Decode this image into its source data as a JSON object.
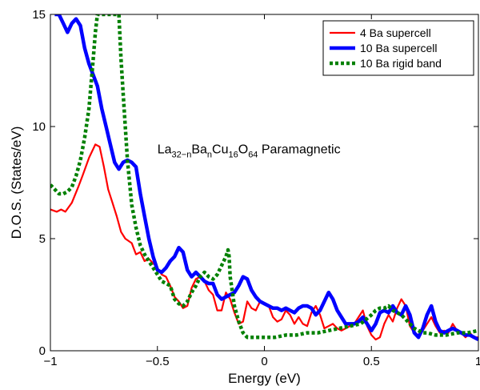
{
  "chart_data": {
    "type": "line",
    "title": "",
    "xlabel": "Energy (eV)",
    "ylabel": "D.O.S. (States/eV)",
    "xlim": [
      -1,
      1
    ],
    "ylim": [
      0,
      15
    ],
    "xticks": [
      -1,
      -0.5,
      0,
      0.5,
      1
    ],
    "xtick_labels": [
      "−1",
      "−0.5",
      "0",
      "0.5",
      "1"
    ],
    "yticks": [
      0,
      5,
      10,
      15
    ],
    "ytick_labels": [
      "0",
      "5",
      "10",
      "15"
    ],
    "grid": false,
    "legend_position": "top-right",
    "annotation": {
      "parts": [
        {
          "text": "La",
          "sub": false
        },
        {
          "text": "32−n",
          "sub": true
        },
        {
          "text": "Ba",
          "sub": false
        },
        {
          "text": "n",
          "sub": true
        },
        {
          "text": "Cu",
          "sub": false
        },
        {
          "text": "16",
          "sub": true
        },
        {
          "text": "O",
          "sub": false
        },
        {
          "text": "64",
          "sub": true
        },
        {
          "text": " Paramagnetic",
          "sub": false
        }
      ],
      "x": -0.5,
      "y": 8.8
    },
    "series": [
      {
        "name": "4 Ba supercell",
        "color": "#ff0000",
        "style": "solid",
        "x": [
          -1.0,
          -0.97,
          -0.95,
          -0.93,
          -0.9,
          -0.87,
          -0.85,
          -0.82,
          -0.79,
          -0.77,
          -0.75,
          -0.73,
          -0.71,
          -0.69,
          -0.67,
          -0.65,
          -0.62,
          -0.6,
          -0.58,
          -0.56,
          -0.54,
          -0.52,
          -0.5,
          -0.48,
          -0.46,
          -0.44,
          -0.42,
          -0.4,
          -0.38,
          -0.36,
          -0.34,
          -0.32,
          -0.3,
          -0.28,
          -0.26,
          -0.24,
          -0.22,
          -0.2,
          -0.18,
          -0.16,
          -0.14,
          -0.12,
          -0.1,
          -0.08,
          -0.06,
          -0.04,
          -0.02,
          0.0,
          0.02,
          0.04,
          0.06,
          0.08,
          0.1,
          0.12,
          0.14,
          0.16,
          0.18,
          0.2,
          0.22,
          0.24,
          0.26,
          0.28,
          0.3,
          0.32,
          0.34,
          0.36,
          0.38,
          0.4,
          0.42,
          0.44,
          0.46,
          0.48,
          0.5,
          0.52,
          0.54,
          0.56,
          0.58,
          0.6,
          0.62,
          0.64,
          0.66,
          0.68,
          0.7,
          0.72,
          0.74,
          0.76,
          0.78,
          0.8,
          0.82,
          0.84,
          0.86,
          0.88,
          0.9,
          0.92,
          0.94,
          0.96,
          0.98,
          1.0
        ],
        "y": [
          6.3,
          6.2,
          6.3,
          6.2,
          6.6,
          7.3,
          7.8,
          8.6,
          9.2,
          9.1,
          8.2,
          7.2,
          6.6,
          6.0,
          5.3,
          5.0,
          4.8,
          4.3,
          4.4,
          4.0,
          4.1,
          3.9,
          3.7,
          3.4,
          3.3,
          2.9,
          2.4,
          2.2,
          1.9,
          2.0,
          2.8,
          3.2,
          3.3,
          3.1,
          2.7,
          2.5,
          1.8,
          1.8,
          2.6,
          2.3,
          1.7,
          1.2,
          1.3,
          2.2,
          1.9,
          1.8,
          2.2,
          2.1,
          2.0,
          1.5,
          1.3,
          1.4,
          1.8,
          1.6,
          1.2,
          1.5,
          1.2,
          1.1,
          1.7,
          2.0,
          1.6,
          1.0,
          1.1,
          1.2,
          1.0,
          0.9,
          1.0,
          1.1,
          1.2,
          1.5,
          1.8,
          1.1,
          0.7,
          0.5,
          0.6,
          1.2,
          1.6,
          1.3,
          1.9,
          2.3,
          2.0,
          1.1,
          0.8,
          0.7,
          0.9,
          1.2,
          1.5,
          1.1,
          0.8,
          0.9,
          0.8,
          1.2,
          0.9,
          0.8,
          0.6,
          0.8,
          0.6,
          0.6
        ]
      },
      {
        "name": "10 Ba supercell",
        "color": "#0000ff",
        "style": "solid-thick",
        "x": [
          -0.98,
          -0.96,
          -0.94,
          -0.92,
          -0.9,
          -0.88,
          -0.86,
          -0.84,
          -0.82,
          -0.8,
          -0.78,
          -0.76,
          -0.74,
          -0.72,
          -0.7,
          -0.68,
          -0.66,
          -0.64,
          -0.62,
          -0.6,
          -0.58,
          -0.56,
          -0.54,
          -0.52,
          -0.5,
          -0.48,
          -0.46,
          -0.44,
          -0.42,
          -0.4,
          -0.38,
          -0.36,
          -0.34,
          -0.32,
          -0.3,
          -0.28,
          -0.26,
          -0.24,
          -0.22,
          -0.2,
          -0.18,
          -0.16,
          -0.14,
          -0.12,
          -0.1,
          -0.08,
          -0.06,
          -0.04,
          -0.02,
          0.0,
          0.02,
          0.04,
          0.06,
          0.08,
          0.1,
          0.12,
          0.14,
          0.16,
          0.18,
          0.2,
          0.22,
          0.24,
          0.26,
          0.28,
          0.3,
          0.32,
          0.34,
          0.36,
          0.38,
          0.4,
          0.42,
          0.44,
          0.46,
          0.48,
          0.5,
          0.52,
          0.54,
          0.56,
          0.58,
          0.6,
          0.62,
          0.64,
          0.66,
          0.68,
          0.7,
          0.72,
          0.74,
          0.76,
          0.78,
          0.8,
          0.82,
          0.84,
          0.86,
          0.88,
          0.9,
          0.92,
          0.94,
          0.96,
          0.98,
          1.0
        ],
        "y": [
          15.0,
          15.0,
          14.6,
          14.2,
          14.6,
          14.8,
          14.5,
          13.5,
          12.8,
          12.3,
          11.8,
          10.8,
          10.0,
          9.2,
          8.4,
          8.1,
          8.4,
          8.5,
          8.4,
          8.2,
          7.0,
          6.0,
          5.0,
          4.2,
          3.6,
          3.5,
          3.7,
          4.0,
          4.2,
          4.6,
          4.4,
          3.6,
          3.3,
          3.5,
          3.3,
          3.1,
          3.0,
          3.0,
          2.5,
          2.3,
          2.4,
          2.5,
          2.6,
          2.9,
          3.3,
          3.2,
          2.7,
          2.4,
          2.2,
          2.1,
          2.0,
          1.9,
          1.9,
          1.8,
          1.9,
          1.8,
          1.7,
          1.9,
          2.0,
          2.0,
          1.9,
          1.6,
          1.8,
          2.2,
          2.6,
          2.3,
          1.8,
          1.5,
          1.2,
          1.2,
          1.2,
          1.3,
          1.5,
          1.2,
          0.9,
          1.2,
          1.7,
          1.8,
          1.7,
          2.0,
          1.7,
          1.6,
          2.0,
          1.6,
          0.8,
          0.6,
          1.0,
          1.6,
          2.0,
          1.3,
          0.9,
          0.8,
          0.9,
          1.0,
          0.9,
          0.8,
          0.7,
          0.7,
          0.6,
          0.5
        ]
      },
      {
        "name": "10 Ba rigid band",
        "color": "#008000",
        "style": "dotted",
        "x": [
          -1.0,
          -0.98,
          -0.96,
          -0.94,
          -0.92,
          -0.9,
          -0.88,
          -0.86,
          -0.84,
          -0.82,
          -0.8,
          -0.79,
          -0.78,
          -0.77,
          -0.76,
          -0.75,
          -0.745,
          -0.74,
          -0.73,
          -0.72,
          -0.71,
          -0.7,
          -0.69,
          -0.68,
          -0.67,
          -0.66,
          -0.65,
          -0.64,
          -0.62,
          -0.6,
          -0.58,
          -0.56,
          -0.54,
          -0.52,
          -0.5,
          -0.48,
          -0.46,
          -0.44,
          -0.42,
          -0.4,
          -0.38,
          -0.36,
          -0.34,
          -0.32,
          -0.3,
          -0.28,
          -0.26,
          -0.24,
          -0.22,
          -0.2,
          -0.18,
          -0.17,
          -0.165,
          -0.16,
          -0.14,
          -0.12,
          -0.1,
          -0.08,
          -0.06,
          -0.04,
          -0.02,
          0.0,
          0.05,
          0.1,
          0.15,
          0.2,
          0.25,
          0.3,
          0.35,
          0.4,
          0.45,
          0.5,
          0.52,
          0.54,
          0.56,
          0.58,
          0.6,
          0.62,
          0.64,
          0.66,
          0.68,
          0.7,
          0.72,
          0.74,
          0.76,
          0.8,
          0.85,
          0.9,
          0.95,
          1.0
        ],
        "y": [
          7.4,
          7.2,
          7.0,
          7.0,
          7.1,
          7.3,
          7.8,
          8.5,
          9.5,
          10.8,
          13.0,
          14.2,
          15.0,
          15.0,
          15.0,
          15.0,
          15.0,
          15.0,
          15.0,
          15.0,
          15.0,
          15.0,
          15.0,
          15.0,
          13.0,
          11.5,
          10.0,
          8.5,
          6.5,
          5.5,
          4.7,
          4.3,
          4.0,
          3.7,
          3.4,
          3.1,
          3.0,
          2.9,
          2.3,
          2.1,
          2.0,
          2.2,
          2.6,
          2.9,
          3.3,
          3.5,
          3.3,
          3.2,
          3.4,
          3.8,
          4.2,
          4.5,
          4.2,
          3.3,
          2.0,
          1.3,
          0.8,
          0.6,
          0.6,
          0.6,
          0.6,
          0.6,
          0.6,
          0.7,
          0.7,
          0.8,
          0.8,
          0.9,
          1.0,
          1.1,
          1.2,
          1.6,
          1.8,
          1.9,
          1.9,
          2.0,
          1.8,
          1.7,
          1.6,
          1.4,
          1.2,
          1.0,
          0.9,
          0.8,
          0.8,
          0.7,
          0.7,
          0.8,
          0.8,
          0.9
        ]
      }
    ]
  }
}
